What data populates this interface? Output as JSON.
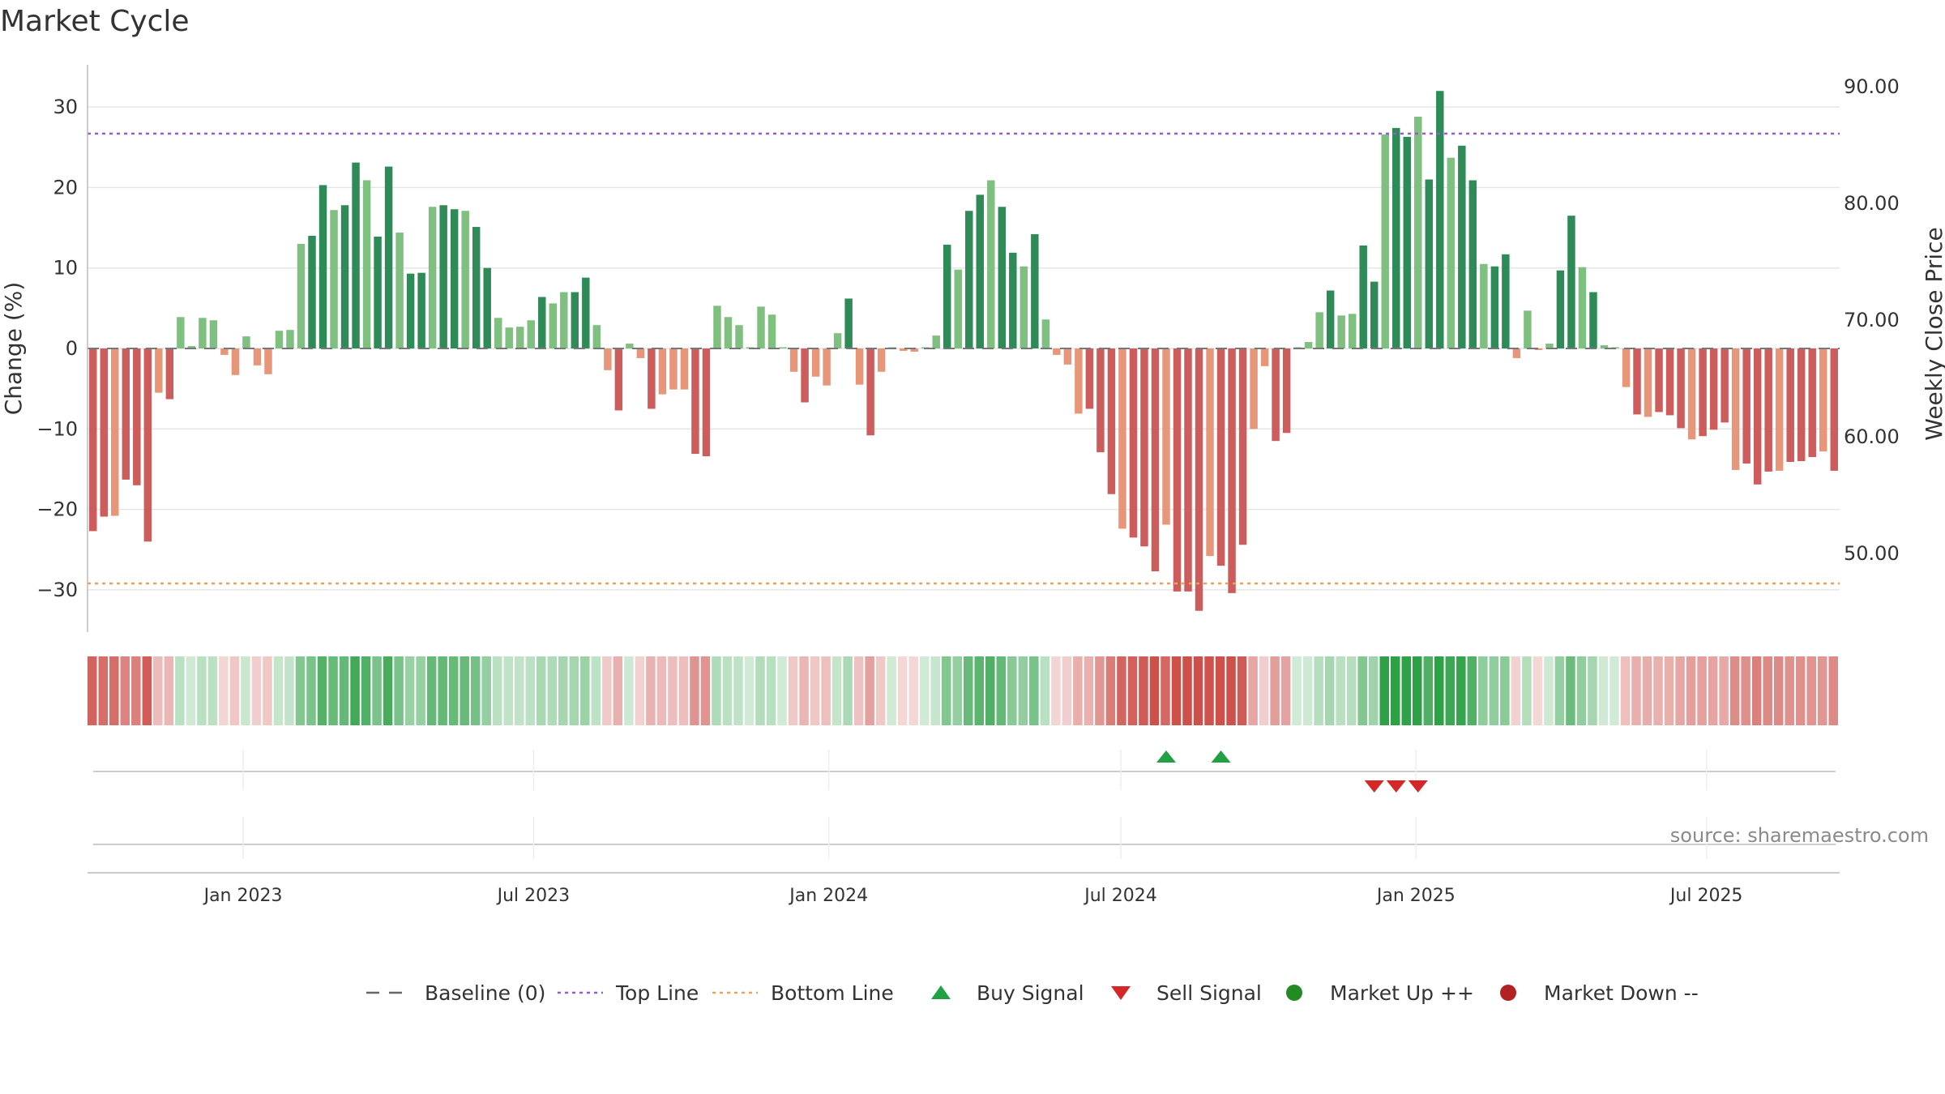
{
  "title": "Market Cycle",
  "source": "source: sharemaestro.com",
  "chart_data": {
    "type": "bar",
    "ylabel_left": "Change (%)",
    "ylabel_right": "Weekly Close Price",
    "ylim_left": [
      -35,
      36
    ],
    "yticks_left": [
      30,
      20,
      10,
      0,
      -10,
      -20,
      -30
    ],
    "ytick_labels_left": [
      "30",
      "20",
      "10",
      "0",
      "−10",
      "−20",
      "−30"
    ],
    "yticks_right": [
      90,
      80,
      70,
      60,
      50
    ],
    "ytick_labels_right": [
      "90.00",
      "80.00",
      "70.00",
      "60.00",
      "50.00"
    ],
    "x_start": "2022-09-26",
    "x_end": "2025-09-22",
    "xtick_dates": [
      "2023-01-01",
      "2023-07-01",
      "2024-01-01",
      "2024-07-01",
      "2025-01-01",
      "2025-07-01"
    ],
    "xtick_labels": [
      "Jan 2023",
      "Jul 2023",
      "Jan 2024",
      "Jul 2024",
      "Jan 2025",
      "Jul 2025"
    ],
    "top_line": 26.7,
    "bottom_line": -29.2,
    "values": [
      -22.7,
      -20.9,
      -20.8,
      -16.3,
      -17,
      -24,
      -5.5,
      -6.3,
      3.9,
      0.3,
      3.8,
      3.5,
      -0.8,
      -3.3,
      1.5,
      -2.1,
      -3.2,
      2.2,
      2.3,
      13,
      14,
      20.3,
      17.2,
      17.8,
      23.1,
      20.9,
      13.9,
      22.6,
      14.4,
      9.3,
      9.4,
      17.6,
      17.8,
      17.3,
      17.1,
      15.1,
      10,
      3.8,
      2.6,
      2.7,
      3.5,
      6.4,
      5.6,
      7,
      7,
      8.8,
      2.9,
      -2.7,
      -7.7,
      0.6,
      -1.2,
      -7.5,
      -5.7,
      -5.1,
      -5.1,
      -13.1,
      -13.4,
      5.3,
      3.9,
      2.9,
      0,
      5.2,
      4.2,
      0,
      -2.9,
      -6.7,
      -3.5,
      -4.6,
      1.9,
      6.2,
      -4.5,
      -10.8,
      -2.9,
      0,
      -0.3,
      -0.4,
      0,
      1.6,
      12.9,
      9.8,
      17.1,
      19.1,
      20.9,
      17.6,
      11.9,
      10.2,
      14.2,
      3.6,
      -0.8,
      -2,
      -8.1,
      -7.5,
      -12.9,
      -18.1,
      -22.4,
      -23.5,
      -24.6,
      -27.7,
      -21.9,
      -30.2,
      -30.2,
      -32.6,
      -25.8,
      -27,
      -30.4,
      -24.4,
      -10,
      -2.2,
      -11.5,
      -10.5,
      0,
      0.8,
      4.5,
      7.2,
      4.1,
      4.3,
      12.8,
      8.3,
      26.6,
      27.4,
      26.3,
      28.8,
      21,
      32,
      23.7,
      25.2,
      20.9,
      10.5,
      10.2,
      11.7,
      -1.2,
      4.7,
      -0.2,
      0.6,
      9.7,
      16.5,
      10.1,
      7,
      0.4,
      0,
      -4.8,
      -8.2,
      -8.5,
      -7.9,
      -8.3,
      -9.9,
      -11.3,
      -10.9,
      -10.1,
      -9.2,
      -15.1,
      -14.3,
      -16.9,
      -15.3,
      -15.2,
      -14.1,
      -14,
      -13.5,
      -12.8,
      -15.2
    ],
    "price_grid_lines": [
      90,
      80,
      70,
      60,
      50
    ],
    "buy_signal_weeks": [
      98,
      103
    ],
    "sell_signal_weeks": [
      117,
      119,
      121
    ],
    "color_scale": {
      "strong_up": "#2e8b57",
      "up": "#7fbf7f",
      "down": "#e8967a",
      "strong_down": "#cd5c5c"
    },
    "legend": [
      {
        "label": "Baseline (0)",
        "kind": "dash",
        "color": "#666666"
      },
      {
        "label": "Top Line",
        "kind": "dot",
        "color": "#9b59d0"
      },
      {
        "label": "Bottom Line",
        "kind": "dot",
        "color": "#f0a050"
      },
      {
        "label": "Buy Signal",
        "kind": "tri-up",
        "color": "#22a045"
      },
      {
        "label": "Sell Signal",
        "kind": "tri-down",
        "color": "#d62728"
      },
      {
        "label": "Market Up ++",
        "kind": "circle",
        "color": "#228b22"
      },
      {
        "label": "Market Down --",
        "kind": "circle",
        "color": "#b22222"
      }
    ]
  }
}
